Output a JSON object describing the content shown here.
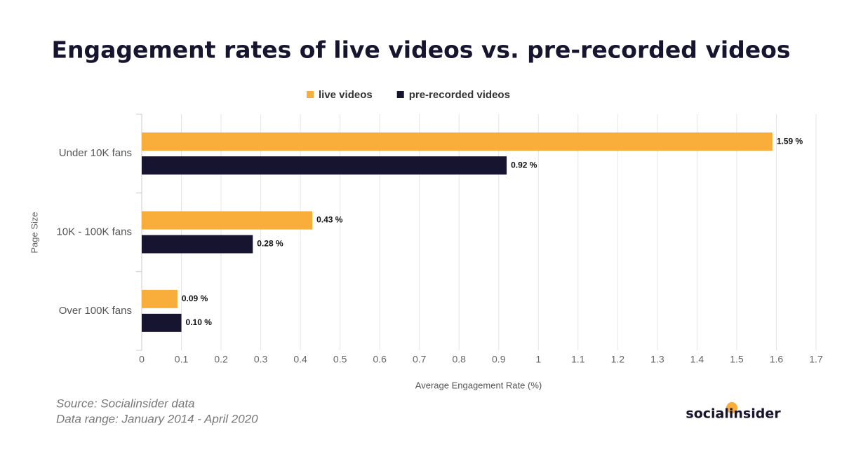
{
  "chart_data": {
    "type": "hbar",
    "title": "Engagement rates of live videos vs. pre-recorded videos",
    "categories": [
      "Under 10K fans",
      "10K - 100K fans",
      "Over 100K fans"
    ],
    "series": [
      {
        "name": "live videos",
        "color": "#f9ad3b",
        "values": [
          1.59,
          0.43,
          0.09
        ],
        "value_labels": [
          "1.59 %",
          "0.43 %",
          "0.09 %"
        ]
      },
      {
        "name": "pre-recorded videos",
        "color": "#16142e",
        "values": [
          0.92,
          0.28,
          0.1
        ],
        "value_labels": [
          "0.92 %",
          "0.28 %",
          "0.10 %"
        ]
      }
    ],
    "xlim": [
      0,
      1.7
    ],
    "xticks": [
      0,
      0.1,
      0.2,
      0.3,
      0.4,
      0.5,
      0.6,
      0.7,
      0.8,
      0.9,
      1,
      1.1,
      1.2,
      1.3,
      1.4,
      1.5,
      1.6,
      1.7
    ],
    "xlabel": "Average Engagement Rate (%)",
    "ylabel": "Page Size",
    "grid": true,
    "legend": "top",
    "notes": [
      "Source: Socialinsider data",
      "Data range: January 2014 - April 2020"
    ],
    "logo": "socialinsider"
  }
}
